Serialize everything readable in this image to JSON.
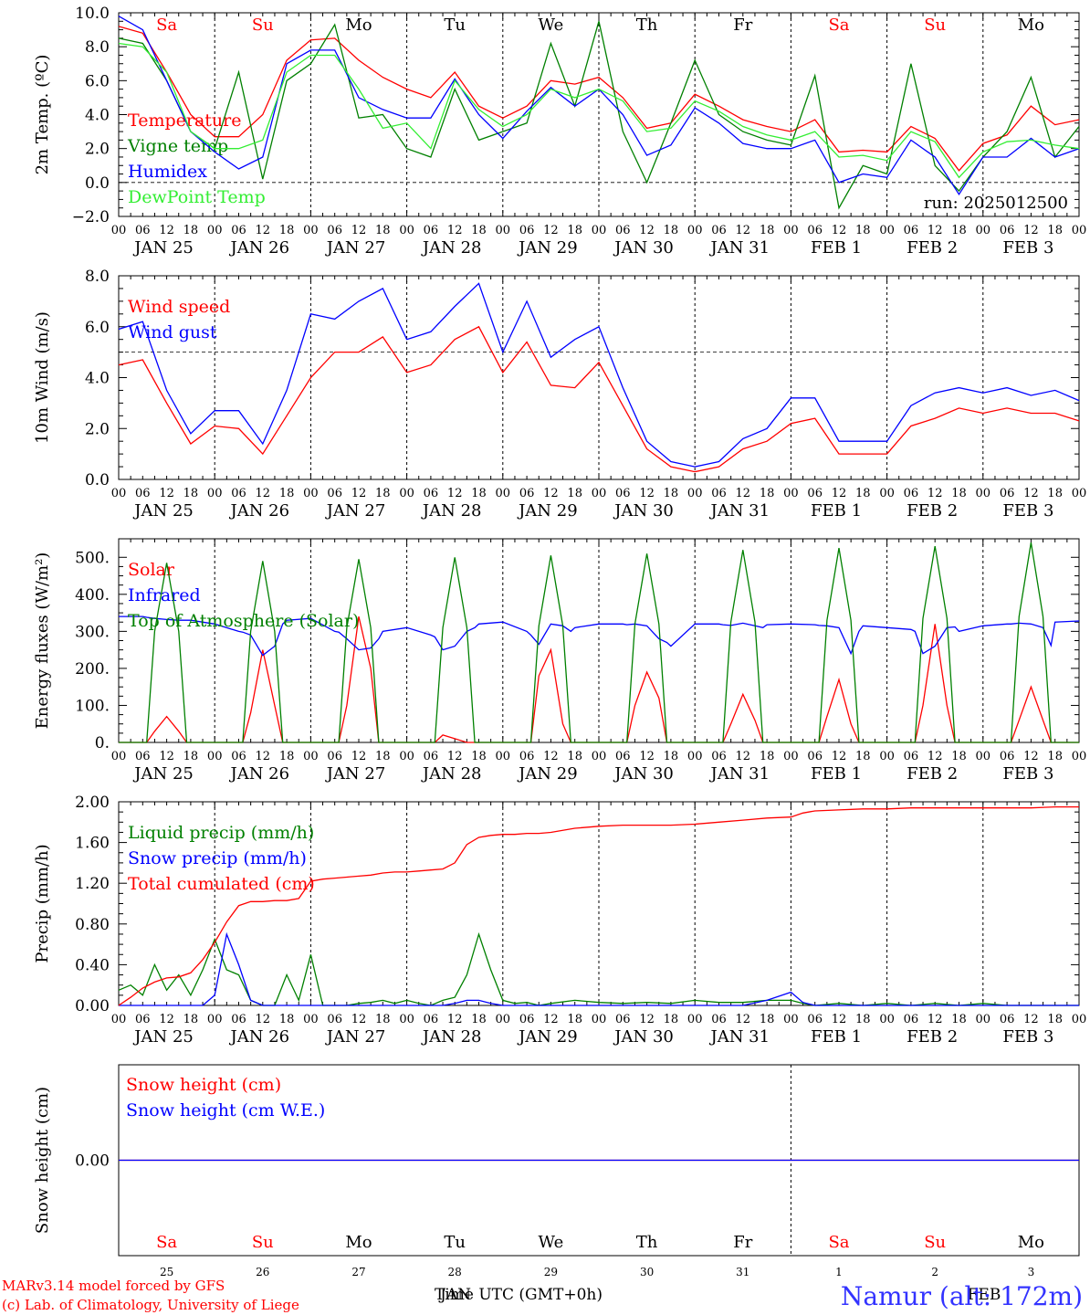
{
  "colors": {
    "red": "#ff0000",
    "green": "#008000",
    "blue": "#0000ff",
    "lightgreen": "#33ee33",
    "axis": "#000000"
  },
  "day_labels": [
    "Sa",
    "Su",
    "Mo",
    "Tu",
    "We",
    "Th",
    "Fr",
    "Sa",
    "Su",
    "Mo"
  ],
  "day_label_colors": [
    "red",
    "red",
    "black",
    "black",
    "black",
    "black",
    "black",
    "red",
    "red",
    "black"
  ],
  "date_labels": [
    "JAN 25",
    "JAN 26",
    "JAN 27",
    "JAN 28",
    "JAN 29",
    "JAN 30",
    "JAN 31",
    "FEB  1",
    "FEB  2",
    "FEB  3"
  ],
  "hour_labels": [
    "00",
    "06",
    "12",
    "18"
  ],
  "bottom_day_numbers": [
    "25",
    "26",
    "27",
    "28",
    "29",
    "30",
    "31",
    "1",
    "2",
    "3"
  ],
  "footer": {
    "model_line1": "MARv3.14 model forced by GFS",
    "model_line2": "(c) Lab. of Climatology, University of Liege",
    "xlabel": "Time UTC (GMT+0h)",
    "month_labels": [
      "JAN",
      "FEB"
    ],
    "station": "Namur (alt: 172m)"
  },
  "chart_data": [
    {
      "type": "line",
      "ylabel": "2m Temp. (ºC)",
      "ylim": [
        -2,
        10
      ],
      "yticks": [
        -2,
        0,
        2,
        4,
        6,
        8,
        10
      ],
      "ytick_labels": [
        "−2.0",
        "0.0",
        "2.0",
        "4.0",
        "6.0",
        "8.0",
        "10.0"
      ],
      "hline": 0,
      "run_label": "run: 2025012500",
      "x_hours": [
        0,
        6,
        12,
        18,
        24,
        30,
        36,
        42,
        48,
        54,
        60,
        66,
        72,
        78,
        84,
        90,
        96,
        102,
        108,
        114,
        120,
        126,
        132,
        138,
        144,
        150,
        156,
        162,
        168,
        174,
        180,
        186,
        192,
        198,
        204,
        210,
        216,
        222,
        228,
        234,
        240
      ],
      "series": [
        {
          "name": "Temperature",
          "color": "red",
          "values": [
            9.2,
            8.8,
            6.5,
            4.0,
            2.7,
            2.7,
            4.0,
            7.2,
            8.4,
            8.5,
            7.2,
            6.2,
            5.5,
            5.0,
            6.5,
            4.5,
            3.8,
            4.5,
            6.0,
            5.8,
            6.2,
            5.0,
            3.2,
            3.5,
            5.2,
            4.5,
            3.7,
            3.3,
            3.0,
            3.7,
            1.8,
            1.9,
            1.8,
            3.3,
            2.6,
            0.7,
            2.3,
            2.8,
            4.5,
            3.4,
            3.7
          ]
        },
        {
          "name": "Vigne temp",
          "color": "green",
          "values": [
            8.5,
            8.2,
            6.0,
            3.0,
            2.0,
            6.5,
            0.2,
            6.0,
            7.0,
            9.3,
            3.8,
            4.0,
            2.0,
            1.5,
            5.5,
            2.5,
            3.0,
            3.5,
            8.2,
            4.5,
            9.5,
            3.0,
            0.0,
            3.5,
            7.2,
            4.0,
            3.0,
            2.5,
            2.2,
            6.3,
            -1.5,
            1.0,
            0.5,
            7.0,
            1.0,
            -0.5,
            1.5,
            3.0,
            6.2,
            1.5,
            3.3
          ]
        },
        {
          "name": "Humidex",
          "color": "blue",
          "values": [
            9.8,
            9.0,
            6.0,
            3.0,
            1.8,
            0.8,
            1.5,
            7.0,
            7.8,
            7.8,
            5.0,
            4.3,
            3.8,
            3.8,
            6.1,
            4.0,
            2.6,
            4.2,
            5.6,
            4.5,
            5.5,
            4.0,
            1.6,
            2.2,
            4.4,
            3.5,
            2.3,
            2.0,
            2.0,
            2.5,
            0.0,
            0.5,
            0.3,
            2.5,
            1.5,
            -0.7,
            1.5,
            1.5,
            2.6,
            1.5,
            2.0
          ]
        },
        {
          "name": "DewPoint Temp",
          "color": "lightgreen",
          "values": [
            8.2,
            8.0,
            6.5,
            3.0,
            2.0,
            2.0,
            2.5,
            6.5,
            7.5,
            7.5,
            5.5,
            3.2,
            3.5,
            2.0,
            6.0,
            4.3,
            3.3,
            4.0,
            5.5,
            5.0,
            5.5,
            4.8,
            3.0,
            3.2,
            4.8,
            4.2,
            3.3,
            2.8,
            2.5,
            3.0,
            1.5,
            1.6,
            1.3,
            3.0,
            2.4,
            0.3,
            1.8,
            2.4,
            2.5,
            2.2,
            2.0
          ]
        }
      ]
    },
    {
      "type": "line",
      "ylabel": "10m Wind (m/s)",
      "ylim": [
        0,
        8
      ],
      "yticks": [
        0,
        2,
        4,
        6,
        8
      ],
      "ytick_labels": [
        "0.0",
        "2.0",
        "4.0",
        "6.0",
        "8.0"
      ],
      "hline": 5,
      "x_hours": [
        0,
        6,
        12,
        18,
        24,
        30,
        36,
        42,
        48,
        54,
        60,
        66,
        72,
        78,
        84,
        90,
        96,
        102,
        108,
        114,
        120,
        126,
        132,
        138,
        144,
        150,
        156,
        162,
        168,
        174,
        180,
        186,
        192,
        198,
        204,
        210,
        216,
        222,
        228,
        234,
        240
      ],
      "series": [
        {
          "name": "Wind speed",
          "color": "red",
          "values": [
            4.5,
            4.7,
            3.0,
            1.4,
            2.1,
            2.0,
            1.0,
            2.5,
            4.0,
            5.0,
            5.0,
            5.6,
            4.2,
            4.5,
            5.5,
            6.0,
            4.2,
            5.4,
            3.7,
            3.6,
            4.6,
            2.9,
            1.2,
            0.5,
            0.3,
            0.5,
            1.2,
            1.5,
            2.2,
            2.4,
            1.0,
            1.0,
            1.0,
            2.1,
            2.4,
            2.8,
            2.6,
            2.8,
            2.6,
            2.6,
            2.3
          ]
        },
        {
          "name": "Wind gust",
          "color": "blue",
          "values": [
            5.9,
            6.2,
            3.5,
            1.8,
            2.7,
            2.7,
            1.4,
            3.5,
            6.5,
            6.3,
            7.0,
            7.5,
            5.5,
            5.8,
            6.8,
            7.7,
            5.0,
            7.0,
            4.8,
            5.5,
            6.0,
            3.6,
            1.5,
            0.7,
            0.5,
            0.7,
            1.6,
            2.0,
            3.2,
            3.2,
            1.5,
            1.5,
            1.5,
            2.9,
            3.4,
            3.6,
            3.4,
            3.6,
            3.3,
            3.5,
            3.1
          ]
        }
      ]
    },
    {
      "type": "line",
      "ylabel": "Energy fluxes (W/m²)",
      "ylim": [
        0,
        550
      ],
      "yticks": [
        0,
        100,
        200,
        300,
        400,
        500
      ],
      "ytick_labels": [
        "0.",
        "100.",
        "200.",
        "300.",
        "400.",
        "500."
      ],
      "x_hours": [
        0,
        6,
        7,
        9,
        12,
        15,
        17,
        18,
        24,
        30,
        31,
        33,
        36,
        39,
        41,
        42,
        48,
        54,
        55,
        57,
        60,
        63,
        65,
        66,
        72,
        78,
        79,
        81,
        84,
        87,
        89,
        90,
        96,
        102,
        103,
        105,
        108,
        111,
        113,
        114,
        120,
        126,
        127,
        129,
        132,
        135,
        137,
        138,
        144,
        150,
        151,
        153,
        156,
        159,
        161,
        162,
        168,
        174,
        175,
        177,
        180,
        183,
        185,
        186,
        192,
        198,
        199,
        201,
        204,
        207,
        209,
        210,
        216,
        222,
        223,
        225,
        228,
        231,
        233,
        234,
        240
      ],
      "series": [
        {
          "name": "Solar",
          "color": "red",
          "values": [
            0,
            0,
            0,
            30,
            70,
            30,
            0,
            0,
            0,
            0,
            0,
            80,
            250,
            100,
            0,
            0,
            0,
            0,
            0,
            100,
            340,
            200,
            0,
            0,
            0,
            0,
            0,
            20,
            10,
            0,
            0,
            0,
            0,
            0,
            0,
            180,
            250,
            50,
            0,
            0,
            0,
            0,
            0,
            100,
            190,
            120,
            0,
            0,
            0,
            0,
            0,
            50,
            130,
            60,
            0,
            0,
            0,
            0,
            0,
            70,
            170,
            50,
            0,
            0,
            0,
            0,
            0,
            100,
            320,
            100,
            0,
            0,
            0,
            0,
            0,
            60,
            150,
            60,
            0,
            0,
            0
          ]
        },
        {
          "name": "Infrared",
          "color": "blue",
          "values": [
            340,
            340,
            338,
            335,
            332,
            330,
            330,
            330,
            320,
            300,
            298,
            290,
            235,
            260,
            320,
            330,
            335,
            300,
            298,
            280,
            250,
            255,
            280,
            300,
            310,
            290,
            285,
            250,
            260,
            300,
            310,
            320,
            325,
            300,
            290,
            265,
            320,
            315,
            300,
            310,
            320,
            320,
            318,
            320,
            315,
            280,
            270,
            260,
            320,
            320,
            318,
            316,
            322,
            315,
            310,
            318,
            320,
            318,
            316,
            315,
            310,
            240,
            300,
            315,
            310,
            305,
            300,
            240,
            260,
            310,
            312,
            300,
            315,
            320,
            320,
            322,
            320,
            310,
            262,
            325,
            328
          ]
        },
        {
          "name": "Top of Atmosphere (Solar)",
          "color": "green",
          "values": [
            0,
            0,
            0,
            300,
            485,
            300,
            0,
            0,
            0,
            0,
            0,
            300,
            490,
            300,
            0,
            0,
            0,
            0,
            0,
            310,
            495,
            310,
            0,
            0,
            0,
            0,
            0,
            310,
            500,
            310,
            0,
            0,
            0,
            0,
            0,
            315,
            505,
            315,
            0,
            0,
            0,
            0,
            0,
            320,
            510,
            320,
            0,
            0,
            0,
            0,
            0,
            325,
            520,
            325,
            0,
            0,
            0,
            0,
            0,
            330,
            525,
            330,
            0,
            0,
            0,
            0,
            0,
            335,
            530,
            335,
            0,
            0,
            0,
            0,
            0,
            340,
            540,
            340,
            0,
            0,
            0
          ]
        }
      ]
    },
    {
      "type": "line",
      "ylabel": "Precip (mm/h)",
      "ylim": [
        0,
        2
      ],
      "yticks": [
        0,
        0.4,
        0.8,
        1.2,
        1.6,
        2.0
      ],
      "ytick_labels": [
        "0.00",
        "0.40",
        "0.80",
        "1.20",
        "1.60",
        "2.00"
      ],
      "x_hours": [
        0,
        3,
        6,
        9,
        12,
        15,
        18,
        21,
        24,
        27,
        30,
        33,
        36,
        39,
        42,
        45,
        48,
        51,
        54,
        57,
        60,
        63,
        66,
        69,
        72,
        75,
        78,
        81,
        84,
        87,
        90,
        93,
        96,
        99,
        102,
        105,
        108,
        114,
        120,
        126,
        132,
        138,
        144,
        150,
        156,
        162,
        168,
        171,
        174,
        180,
        186,
        192,
        198,
        204,
        210,
        216,
        222,
        228,
        234,
        240
      ],
      "series": [
        {
          "name": "Liquid precip (mm/h)",
          "color": "green",
          "values": [
            0.15,
            0.2,
            0.1,
            0.4,
            0.15,
            0.3,
            0.1,
            0.35,
            0.65,
            0.35,
            0.3,
            0.05,
            0.0,
            0.0,
            0.3,
            0.05,
            0.5,
            0.0,
            0.0,
            0.0,
            0.02,
            0.03,
            0.05,
            0.02,
            0.05,
            0.02,
            0.0,
            0.05,
            0.08,
            0.3,
            0.7,
            0.35,
            0.05,
            0.02,
            0.03,
            0.0,
            0.02,
            0.05,
            0.03,
            0.02,
            0.03,
            0.02,
            0.05,
            0.03,
            0.03,
            0.05,
            0.05,
            0.02,
            0.0,
            0.02,
            0.0,
            0.02,
            0.0,
            0.02,
            0.0,
            0.02,
            0.0,
            0.0,
            0.0,
            0.0
          ]
        },
        {
          "name": "Snow precip (mm/h)",
          "color": "blue",
          "values": [
            0.0,
            0.0,
            0.0,
            0.0,
            0.0,
            0.0,
            0.0,
            0.0,
            0.1,
            0.7,
            0.4,
            0.05,
            0.0,
            0.0,
            0.0,
            0.0,
            0.0,
            0.0,
            0.0,
            0.0,
            0.0,
            0.0,
            0.0,
            0.0,
            0.0,
            0.0,
            0.0,
            0.0,
            0.02,
            0.05,
            0.05,
            0.02,
            0.0,
            0.0,
            0.0,
            0.0,
            0.0,
            0.0,
            0.0,
            0.0,
            0.0,
            0.0,
            0.0,
            0.0,
            0.0,
            0.05,
            0.13,
            0.03,
            0.0,
            0.0,
            0.0,
            0.0,
            0.0,
            0.0,
            0.0,
            0.0,
            0.0,
            0.0,
            0.0,
            0.0
          ]
        },
        {
          "name": "Total cumulated (cm)",
          "color": "red",
          "values": [
            0.0,
            0.08,
            0.17,
            0.23,
            0.27,
            0.28,
            0.32,
            0.45,
            0.62,
            0.82,
            0.98,
            1.02,
            1.02,
            1.03,
            1.03,
            1.05,
            1.22,
            1.24,
            1.25,
            1.26,
            1.27,
            1.28,
            1.3,
            1.31,
            1.31,
            1.32,
            1.33,
            1.34,
            1.4,
            1.58,
            1.65,
            1.67,
            1.68,
            1.68,
            1.69,
            1.69,
            1.7,
            1.74,
            1.76,
            1.77,
            1.77,
            1.77,
            1.78,
            1.8,
            1.82,
            1.84,
            1.85,
            1.89,
            1.91,
            1.92,
            1.93,
            1.93,
            1.94,
            1.94,
            1.94,
            1.94,
            1.94,
            1.94,
            1.95,
            1.95
          ]
        }
      ]
    },
    {
      "type": "line",
      "ylabel": "Snow height (cm)",
      "ylim": [
        -1,
        1
      ],
      "yticks": [
        0
      ],
      "ytick_labels": [
        "0.00"
      ],
      "x_hours": [
        0,
        240
      ],
      "series": [
        {
          "name": "Snow height (cm)",
          "color": "red",
          "values": [
            0,
            0
          ]
        },
        {
          "name": "Snow height (cm W.E.)",
          "color": "blue",
          "values": [
            0,
            0
          ]
        }
      ]
    }
  ]
}
